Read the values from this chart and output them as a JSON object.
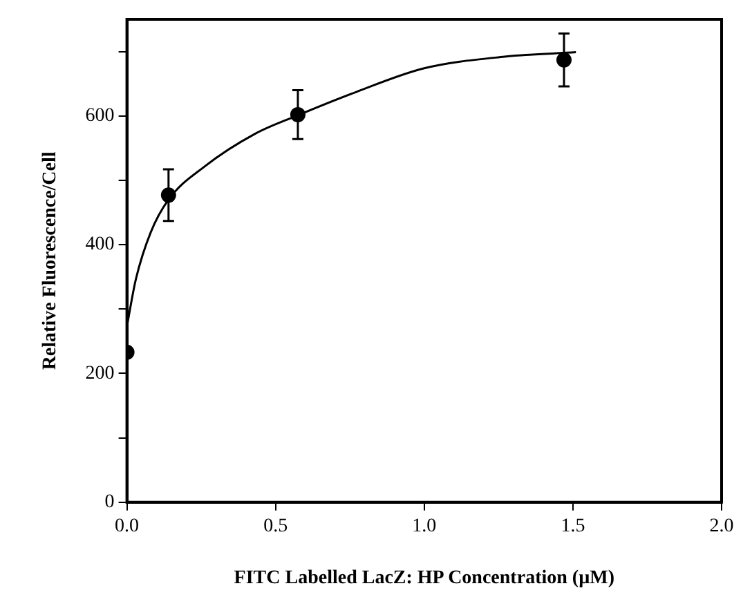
{
  "chart_data": {
    "type": "scatter",
    "xlabel": "FITC Labelled LacZ: HP Concentration (µM)",
    "ylabel": "Relative Fluorescence/Cell",
    "xlim": [
      0,
      2
    ],
    "ylim": [
      0,
      750
    ],
    "xticks": [
      {
        "value": 0,
        "label": "0.0"
      },
      {
        "value": 0.5,
        "label": "0.5"
      },
      {
        "value": 1,
        "label": "1.0"
      },
      {
        "value": 1.5,
        "label": "1.5"
      },
      {
        "value": 2,
        "label": "2.0"
      }
    ],
    "yticks": [
      0,
      {
        "value": 100,
        "label": null
      },
      200,
      {
        "value": 300,
        "label": null
      },
      400,
      {
        "value": 500,
        "label": null
      },
      600,
      {
        "value": 700,
        "label": null
      }
    ],
    "grid": false,
    "legend": false,
    "marker": "circle",
    "series": [
      {
        "color": "#000000",
        "x": [
          0,
          0.14,
          0.575,
          1.47
        ],
        "values": [
          233,
          477,
          602,
          687
        ],
        "errors": [
          null,
          40,
          38,
          41
        ]
      },
      {
        "type": "line",
        "color": "#000000",
        "marker": "none",
        "line_style": "solid",
        "x": [
          0,
          0.03,
          0.08,
          0.14,
          0.26,
          0.43,
          0.575,
          0.77,
          1.0,
          1.27,
          1.51
        ],
        "values": [
          273,
          346,
          419,
          470,
          521,
          572,
          601,
          637,
          674,
          692,
          699
        ]
      }
    ]
  }
}
